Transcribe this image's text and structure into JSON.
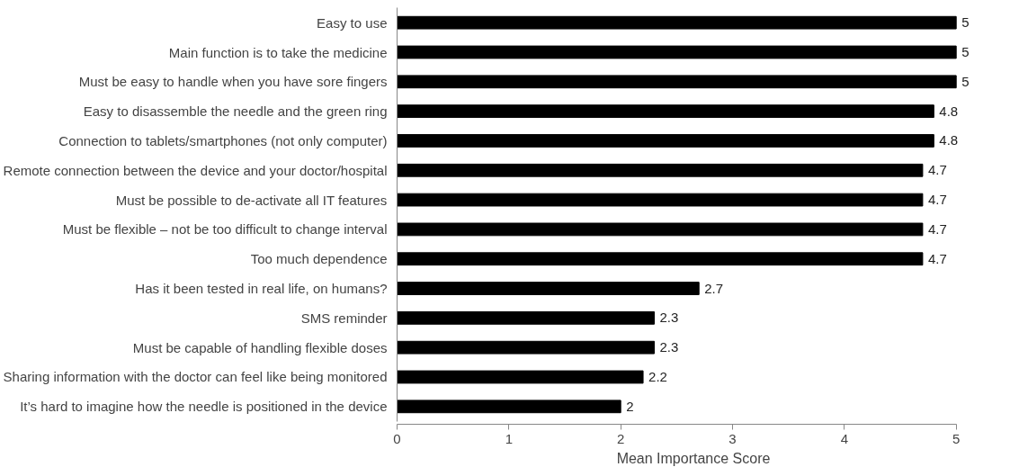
{
  "chart_data": {
    "type": "bar",
    "orientation": "horizontal",
    "xlabel": "Mean Importance Score",
    "categories": [
      "Easy to use",
      "Main function is to take the medicine",
      "Must be easy to handle when you have sore fingers",
      "Easy to disassemble the needle and the green ring",
      "Connection to tablets/smartphones (not only computer)",
      "Remote connection between the device and your doctor/hospital",
      "Must be possible to de-activate all IT features",
      "Must be flexible – not be too difficult to change interval",
      "Too much dependence",
      "Has it been tested in real life, on humans?",
      "SMS reminder",
      "Must be capable of handling flexible doses",
      "Sharing information with the doctor can feel like being monitored",
      "It’s hard to imagine how the needle is positioned in the device"
    ],
    "values": [
      5,
      5,
      5,
      4.8,
      4.8,
      4.7,
      4.7,
      4.7,
      4.7,
      2.7,
      2.3,
      2.3,
      2.2,
      2
    ],
    "color": "#000000",
    "data_labels": true,
    "xlim": [
      0,
      5
    ],
    "xticks": [
      0,
      1,
      2,
      3,
      4,
      5
    ],
    "grid": false
  }
}
